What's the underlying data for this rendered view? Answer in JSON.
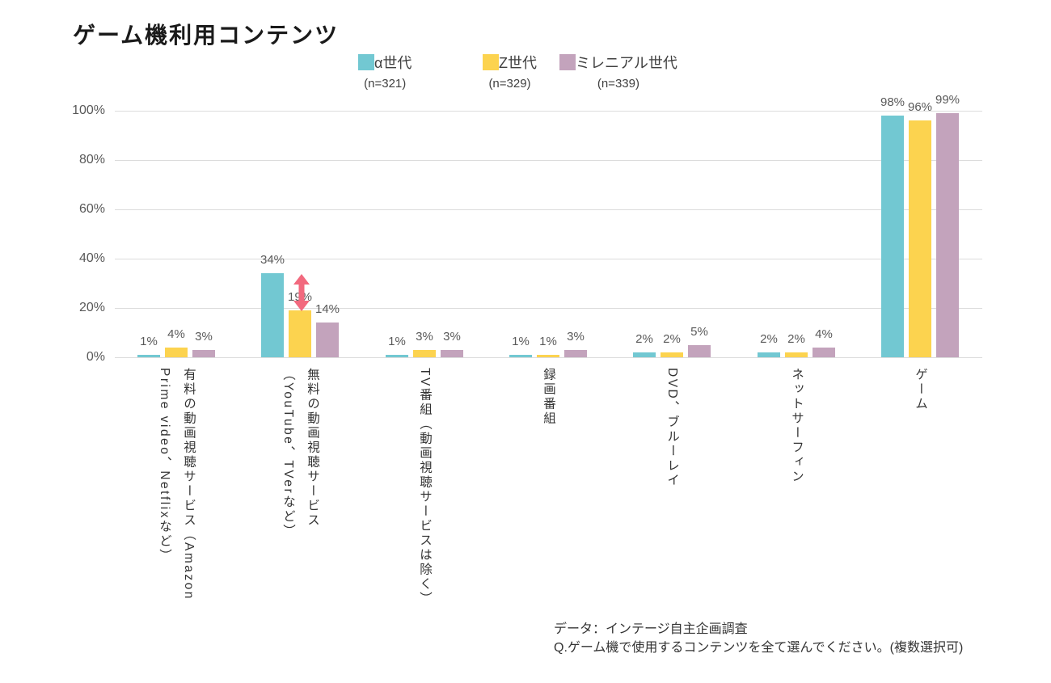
{
  "title": "ゲーム機利用コンテンツ",
  "legend": {
    "items": [
      {
        "label": "α世代",
        "n_label": "(n=321)",
        "color": "#72C8D2"
      },
      {
        "label": "Z世代",
        "n_label": "(n=329)",
        "color": "#FCD34F"
      },
      {
        "label": "ミレニアル世代",
        "n_label": "(n=339)",
        "color": "#C3A3BC"
      }
    ]
  },
  "chart_data": {
    "type": "bar",
    "title": "ゲーム機利用コンテンツ",
    "categories": [
      "有料の動画視聴サービス（Amazon\nPrime video、Netflixなど）",
      "無料の動画視聴サービス\n（YouTube、TVerなど）",
      "TV番組（動画視聴サービスは除く）",
      "録画番組",
      "DVD、ブルーレイ",
      "ネットサーフィン",
      "ゲーム"
    ],
    "series": [
      {
        "name": "α世代",
        "n": 321,
        "color": "#72C8D2",
        "values": [
          1,
          34,
          1,
          1,
          2,
          2,
          98
        ]
      },
      {
        "name": "Z世代",
        "n": 329,
        "color": "#FCD34F",
        "values": [
          4,
          19,
          3,
          1,
          2,
          2,
          96
        ]
      },
      {
        "name": "ミレニアル世代",
        "n": 339,
        "color": "#C3A3BC",
        "values": [
          3,
          14,
          3,
          3,
          5,
          4,
          99
        ]
      }
    ],
    "value_suffix": "%",
    "ylim": [
      0,
      100
    ],
    "yticks": [
      0,
      20,
      40,
      60,
      80,
      100
    ],
    "ytick_labels": [
      "0%",
      "20%",
      "40%",
      "60%",
      "80%",
      "100%"
    ],
    "grid": true,
    "legend_position": "top",
    "annotation": {
      "type": "double_arrow",
      "category_index": 1,
      "between_series": [
        "α世代",
        "Z世代"
      ],
      "from_value": 34,
      "to_value": 19,
      "color": "#F2697E"
    }
  },
  "footer": {
    "source": "データ：インテージ自主企画調査",
    "question": "Q.ゲーム機で使用するコンテンツを全て選んでください。(複数選択可)"
  }
}
